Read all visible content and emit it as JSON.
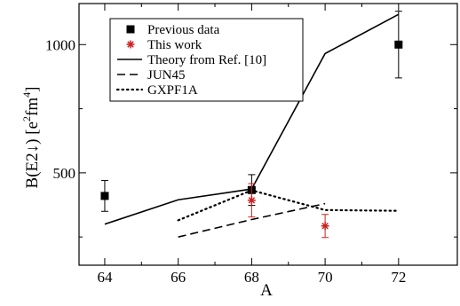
{
  "chart_data": {
    "type": "scatter",
    "xlabel": "A",
    "ylabel": "B(E2↓) [e²fm⁴]",
    "ylabel_parts": {
      "base": "B(E2↓) [e",
      "sup1": "2",
      "mid": "fm",
      "sup2": "4",
      "end": "]"
    },
    "xlim": [
      63.3,
      73.6
    ],
    "ylim": [
      140,
      1160
    ],
    "x_ticks": [
      64,
      66,
      68,
      70,
      72
    ],
    "y_ticks": [
      500,
      1000
    ],
    "grid": false,
    "legend_position": "top-left",
    "series": [
      {
        "name": "Previous data",
        "kind": "marker-square",
        "color": "#000000",
        "points": [
          {
            "x": 64,
            "y": 410,
            "err": 60
          },
          {
            "x": 68,
            "y": 433,
            "err": 60
          },
          {
            "x": 72,
            "y": 1000,
            "err": 130
          }
        ]
      },
      {
        "name": "This work",
        "kind": "marker-star",
        "color": "#cc2222",
        "points": [
          {
            "x": 68,
            "y": 393,
            "err": 65
          },
          {
            "x": 70,
            "y": 293,
            "err": 45
          }
        ]
      },
      {
        "name": "Theory from Ref. [10]",
        "kind": "line-solid",
        "color": "#000000",
        "points": [
          {
            "x": 64,
            "y": 300
          },
          {
            "x": 66,
            "y": 395
          },
          {
            "x": 68,
            "y": 437
          },
          {
            "x": 70,
            "y": 965
          },
          {
            "x": 72,
            "y": 1118
          }
        ]
      },
      {
        "name": "JUN45",
        "kind": "line-dashed",
        "color": "#000000",
        "points": [
          {
            "x": 66,
            "y": 250
          },
          {
            "x": 68,
            "y": 318
          },
          {
            "x": 70,
            "y": 380
          }
        ]
      },
      {
        "name": "GXPF1A",
        "kind": "line-dotted",
        "color": "#000000",
        "points": [
          {
            "x": 66,
            "y": 315
          },
          {
            "x": 68,
            "y": 432
          },
          {
            "x": 70,
            "y": 355
          },
          {
            "x": 72,
            "y": 352
          }
        ]
      }
    ]
  }
}
